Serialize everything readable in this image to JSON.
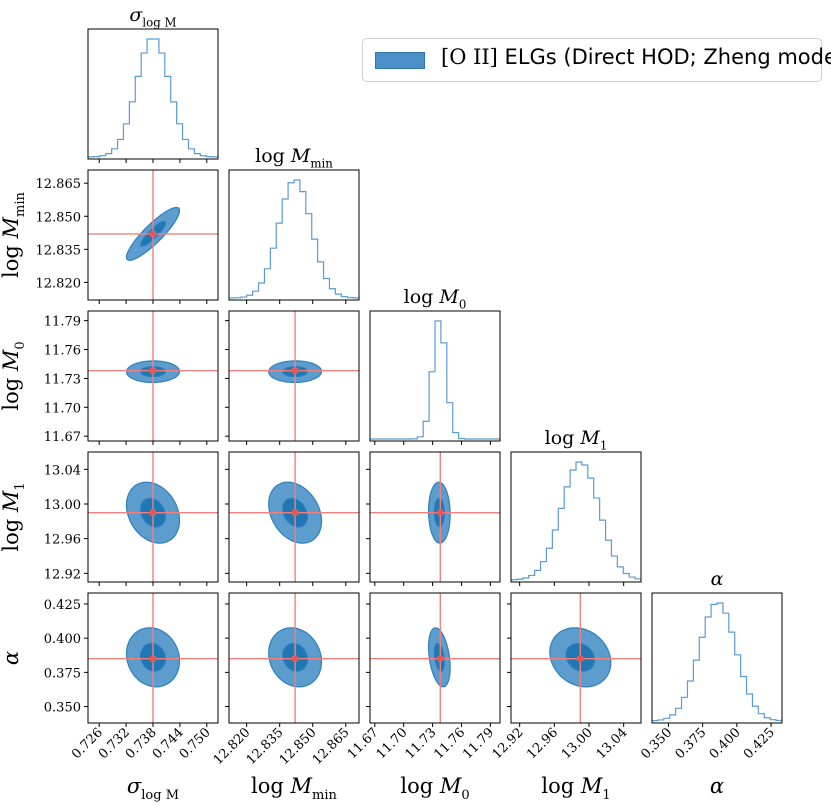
{
  "legend": {
    "label_prefix": "[O II]",
    "label_rest": " ELGs (Direct HOD; Zheng model)",
    "color": "#1f77b4",
    "placement": "top-right"
  },
  "chart_data": {
    "type": "corner",
    "title": "",
    "colors": {
      "fill": "#1f77b4",
      "histogram": "#5b9bd5",
      "truth": "#f08080"
    },
    "parameters": [
      {
        "key": "sigma",
        "label": "σ",
        "sub": "log M",
        "prefix": "",
        "range": [
          0.7235,
          0.7525
        ],
        "ticks": [
          0.726,
          0.732,
          0.738,
          0.744,
          0.75
        ],
        "tick_labels": [
          "0.726",
          "0.732",
          "0.738",
          "0.744",
          "0.750"
        ],
        "truth": 0.738,
        "mean": 0.738,
        "sd": 0.0037
      },
      {
        "key": "logMmin",
        "label": "M",
        "sub": "min",
        "prefix": "log ",
        "range": [
          12.812,
          12.871
        ],
        "ticks": [
          12.82,
          12.835,
          12.85,
          12.865
        ],
        "tick_labels": [
          "12.820",
          "12.835",
          "12.850",
          "12.865"
        ],
        "truth": 12.842,
        "mean": 12.842,
        "sd": 0.0075
      },
      {
        "key": "logM0",
        "label": "M",
        "sub": "0",
        "prefix": "log ",
        "range": [
          11.665,
          11.8
        ],
        "ticks": [
          11.67,
          11.7,
          11.73,
          11.76,
          11.79
        ],
        "tick_labels": [
          "11.67",
          "11.70",
          "11.73",
          "11.76",
          "11.79"
        ],
        "truth": 11.738,
        "mean": 11.737,
        "sd": 0.007
      },
      {
        "key": "logM1",
        "label": "M",
        "sub": "1",
        "prefix": "log ",
        "range": [
          12.91,
          13.06
        ],
        "ticks": [
          12.92,
          12.96,
          13.0,
          13.04
        ],
        "tick_labels": [
          "12.92",
          "12.96",
          "13.00",
          "13.04"
        ],
        "truth": 12.99,
        "mean": 12.99,
        "sd": 0.022
      },
      {
        "key": "alpha",
        "label": "α",
        "sub": "",
        "prefix": "",
        "range": [
          0.338,
          0.433
        ],
        "ticks": [
          0.35,
          0.375,
          0.4,
          0.425
        ],
        "tick_labels": [
          "0.350",
          "0.375",
          "0.400",
          "0.425"
        ],
        "truth": 0.385,
        "mean": 0.386,
        "sd": 0.0135
      }
    ],
    "correlations": {
      "1,0": 0.88,
      "2,0": 0.02,
      "2,1": 0.02,
      "3,0": -0.25,
      "3,1": -0.28,
      "3,2": -0.05,
      "4,0": -0.12,
      "4,1": -0.15,
      "4,2": -0.35,
      "4,3": -0.18
    },
    "histogram_peak_counts": [
      1.0,
      1.0,
      1.0,
      1.0,
      1.0
    ]
  }
}
